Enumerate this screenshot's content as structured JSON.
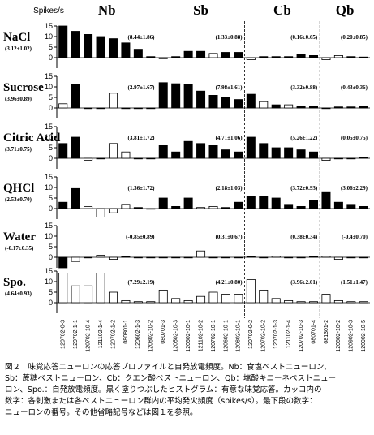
{
  "chart_data": {
    "type": "bar",
    "y_label": "Spikes/s",
    "ylim": [
      -5,
      15
    ],
    "yticks": [
      0,
      5,
      10,
      15
    ],
    "groups": [
      {
        "name": "Nb",
        "neurons": [
          "120702-0-3",
          "120702-1-1",
          "120702-10-4",
          "121102-1-4",
          "120702-1-2",
          "080801-1",
          "120602-1-3",
          "120802-10-2"
        ]
      },
      {
        "name": "Sb",
        "neurons": [
          "080701-3",
          "120502-10-3",
          "120502-10-1",
          "121102-10-2",
          "120702-10-1",
          "120602-10-1",
          "120802-10-1"
        ]
      },
      {
        "name": "Cb",
        "neurons": [
          "120702-0-2",
          "120702-10-2",
          "120702-1-3",
          "121102-1-4",
          "120702-10-3",
          "080701-4"
        ]
      },
      {
        "name": "Qb",
        "neurons": [
          "081301-2",
          "120602-10-2",
          "120902-10-3",
          "120902-10-5"
        ]
      }
    ],
    "rows": [
      {
        "label": "NaCl",
        "mean": "(3.12±1.02)",
        "annotations": [
          "(8.44±1.86)",
          "(1.33±0.88)",
          "(0.16±0.65)",
          "(0.20±0.85)"
        ],
        "values": [
          [
            15,
            12.5,
            11,
            10,
            9,
            7,
            4,
            0.5
          ],
          [
            -0.5,
            0.5,
            3,
            3,
            2,
            2.5,
            2.5
          ],
          [
            -1,
            0.5,
            0.5,
            0.5,
            1.5,
            1
          ],
          [
            -1,
            1,
            0.5,
            0.3
          ]
        ],
        "filled": [
          [
            true,
            true,
            true,
            true,
            true,
            true,
            true,
            true
          ],
          [
            true,
            true,
            true,
            true,
            false,
            true,
            true
          ],
          [
            false,
            true,
            true,
            true,
            true,
            true
          ],
          [
            false,
            false,
            true,
            true
          ]
        ]
      },
      {
        "label": "Sucrose",
        "mean": "(3.96±0.89)",
        "annotations": [
          "(2.97±1.67)",
          "(7.98±1.61)",
          "(3.32±0.88)",
          "(0.43±0.36)"
        ],
        "values": [
          [
            2,
            11,
            0,
            0,
            7,
            0,
            0,
            0
          ],
          [
            12,
            11.5,
            11,
            8,
            6,
            5,
            4
          ],
          [
            6.5,
            3,
            1.5,
            1.5,
            1,
            1
          ],
          [
            0,
            0.5,
            0.5,
            1
          ]
        ],
        "filled": [
          [
            false,
            true,
            true,
            true,
            false,
            true,
            true,
            true
          ],
          [
            true,
            true,
            true,
            true,
            true,
            true,
            true
          ],
          [
            true,
            false,
            true,
            false,
            true,
            true
          ],
          [
            true,
            true,
            true,
            true
          ]
        ]
      },
      {
        "label": "Citric Acid",
        "mean": "(3.71±0.75)",
        "annotations": [
          "(3.81±1.72)",
          "(4.71±1.06)",
          "(5.26±1.22)",
          "(0.05±0.75)"
        ],
        "values": [
          [
            7,
            10,
            -1,
            0,
            7,
            3,
            0,
            0
          ],
          [
            6,
            3,
            8,
            7,
            6,
            4,
            3
          ],
          [
            10,
            7,
            5,
            5,
            4,
            3
          ],
          [
            -1,
            0,
            0,
            0.5
          ]
        ],
        "filled": [
          [
            true,
            true,
            false,
            true,
            false,
            false,
            true,
            true
          ],
          [
            true,
            true,
            true,
            true,
            true,
            true,
            true
          ],
          [
            true,
            true,
            true,
            true,
            true,
            true
          ],
          [
            false,
            true,
            true,
            true
          ]
        ]
      },
      {
        "label": "QHCl",
        "mean": "(2.53±0.70)",
        "annotations": [
          "(1.36±1.72)",
          "(2.18±1.03)",
          "(3.72±0.93)",
          "(3.06±2.29)"
        ],
        "values": [
          [
            3,
            9.5,
            1,
            -4,
            -2,
            2,
            0.5,
            0
          ],
          [
            5,
            1,
            5,
            0.5,
            1,
            0.5,
            3
          ],
          [
            6,
            6,
            5,
            2,
            1,
            4
          ],
          [
            8,
            3,
            2,
            1
          ]
        ],
        "filled": [
          [
            true,
            true,
            false,
            false,
            false,
            false,
            true,
            true
          ],
          [
            true,
            true,
            true,
            false,
            false,
            true,
            true
          ],
          [
            true,
            true,
            true,
            true,
            true,
            true
          ],
          [
            true,
            true,
            true,
            true
          ]
        ]
      },
      {
        "label": "Water",
        "mean": "(-0.17±0.35)",
        "annotations": [
          "(-0.85±0.89)",
          "(0.31±0.67)",
          "(0.38±0.34)",
          "(-0.4±0.70)"
        ],
        "values": [
          [
            -5,
            -2,
            0,
            1,
            -1,
            0.5,
            0,
            0
          ],
          [
            0,
            0,
            0,
            3,
            0,
            0,
            0
          ],
          [
            0.5,
            0,
            0.5,
            0,
            0,
            0.5
          ],
          [
            0.5,
            -1,
            0,
            0
          ]
        ],
        "filled": [
          [
            true,
            false,
            true,
            false,
            false,
            true,
            true,
            true
          ],
          [
            true,
            true,
            true,
            false,
            true,
            true,
            true
          ],
          [
            true,
            true,
            false,
            true,
            true,
            true
          ],
          [
            false,
            false,
            true,
            true
          ]
        ]
      },
      {
        "label": "Spo.",
        "mean": "(4.64±0.93)",
        "annotations": [
          "(7.29±2.19)",
          "(4.21±0.80)",
          "(3.96±2.01)",
          "(1.51±1.47)"
        ],
        "values": [
          [
            14,
            8,
            8,
            14,
            5,
            1,
            0.5,
            0.5
          ],
          [
            6,
            2,
            1,
            3,
            5,
            4,
            4
          ],
          [
            11,
            6,
            2,
            1,
            0.5,
            0.5
          ],
          [
            4,
            1,
            0.5,
            0.5
          ]
        ],
        "filled": [
          [
            false,
            false,
            false,
            false,
            false,
            false,
            false,
            false
          ],
          [
            false,
            false,
            false,
            false,
            false,
            false,
            false
          ],
          [
            false,
            false,
            false,
            false,
            false,
            false
          ],
          [
            false,
            false,
            false,
            false
          ]
        ]
      }
    ]
  },
  "caption": [
    "図２　味覚応答ニューロンの応答プロファイルと自発放電頻度。Nb：食塩ベストニューロン、",
    "Sb：蔗糖ベストニューロン、Cb：クエン酸ベストニューロン、Qb：塩酸キニーネベストニュー",
    "ロン、Spo.：自発放電頻度。黒く塗りつぶしたヒストグラム：有意な味覚応答。カッコ内の",
    "数字：各刺激または各ベストニューロン群内の平均発火頻度（spikes/s）。最下段の数字：",
    "ニューロンの番号。その他省略記号などは図１を参照。"
  ]
}
